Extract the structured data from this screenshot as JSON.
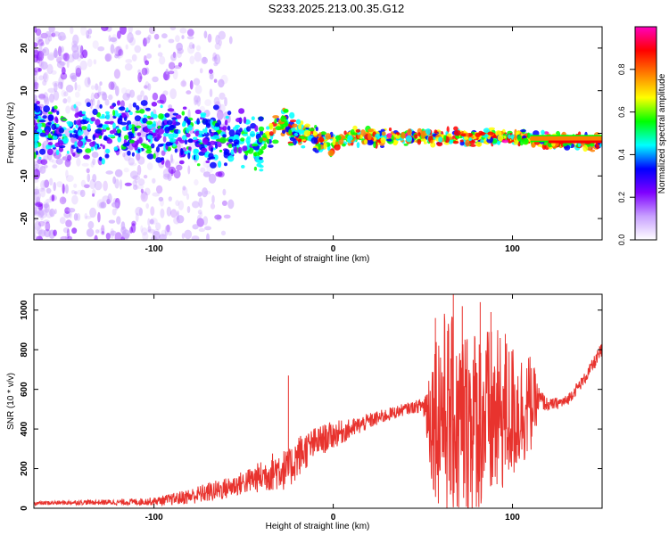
{
  "title": "S233.2025.213.00.35.G12",
  "chart_data": [
    {
      "type": "heatmap",
      "xlabel": "Height of straight line (km)",
      "ylabel": "Frequency (Hz)",
      "xlim": [
        -167,
        150
      ],
      "ylim": [
        -25,
        25
      ],
      "x_ticks": [
        -100,
        0,
        100
      ],
      "y_ticks": [
        -20,
        -10,
        0,
        10,
        20
      ],
      "colorbar": {
        "label": "Normalized spectral amplitude",
        "range": [
          0,
          1
        ],
        "ticks": [
          "0.0",
          "0.2",
          "0.4",
          "0.6",
          "0.8"
        ],
        "tick_values": [
          0,
          0.2,
          0.4,
          0.6,
          0.8
        ],
        "colors": [
          "#ffffff",
          "#c8a0ff",
          "#7f00ff",
          "#0000ff",
          "#00ffff",
          "#00ff00",
          "#ffff00",
          "#ff7f00",
          "#ff0000",
          "#ff00bf"
        ]
      },
      "ridge": {
        "x": [
          -165,
          -140,
          -120,
          -100,
          -90,
          -80,
          -60,
          -45,
          -40,
          -35,
          -30,
          -20,
          -10,
          -5,
          0,
          10,
          30,
          50,
          70,
          90,
          100,
          105,
          110,
          120,
          150
        ],
        "y": [
          1,
          0,
          1,
          0,
          0,
          -1,
          -2,
          -2,
          -3,
          0,
          3,
          0,
          -1,
          -2,
          -2,
          -1,
          -1,
          -1,
          -1,
          -1,
          -1,
          -1,
          -1,
          -2,
          -2
        ]
      }
    },
    {
      "type": "line",
      "xlabel": "Height of straight line (km)",
      "ylabel": "SNR (10 * v/v)",
      "xlim": [
        -167,
        150
      ],
      "ylim": [
        0,
        1080
      ],
      "x_ticks": [
        -100,
        0,
        100
      ],
      "y_ticks": [
        0,
        200,
        400,
        600,
        800,
        1000
      ],
      "color": "#e8332e",
      "series": [
        {
          "x": [
            -167,
            -140,
            -120,
            -100,
            -90,
            -80,
            -70,
            -60,
            -50,
            -40,
            -30,
            -25,
            -20,
            -10,
            0,
            10,
            20,
            30,
            40,
            45,
            50,
            55,
            60,
            70,
            80,
            90,
            95,
            100,
            105,
            110,
            115,
            120,
            130,
            140,
            150
          ],
          "y": [
            25,
            30,
            30,
            35,
            45,
            60,
            80,
            100,
            130,
            160,
            200,
            190,
            260,
            330,
            370,
            400,
            440,
            470,
            500,
            510,
            520,
            470,
            500,
            420,
            450,
            450,
            480,
            480,
            500,
            520,
            550,
            520,
            540,
            650,
            800
          ],
          "noise": [
            10,
            12,
            15,
            20,
            30,
            40,
            50,
            55,
            60,
            80,
            110,
            100,
            110,
            80,
            70,
            50,
            40,
            35,
            30,
            30,
            40,
            360,
            520,
            520,
            480,
            460,
            400,
            360,
            300,
            260,
            60,
            30,
            30,
            30,
            40
          ]
        }
      ],
      "spikes": [
        {
          "x": -25,
          "y": 670
        },
        {
          "x": 57,
          "y": 960
        },
        {
          "x": 67,
          "y": 1080
        },
        {
          "x": 72,
          "y": 1020
        },
        {
          "x": 82,
          "y": 1040
        },
        {
          "x": 88,
          "y": 990
        },
        {
          "x": 96,
          "y": 880
        }
      ]
    }
  ]
}
